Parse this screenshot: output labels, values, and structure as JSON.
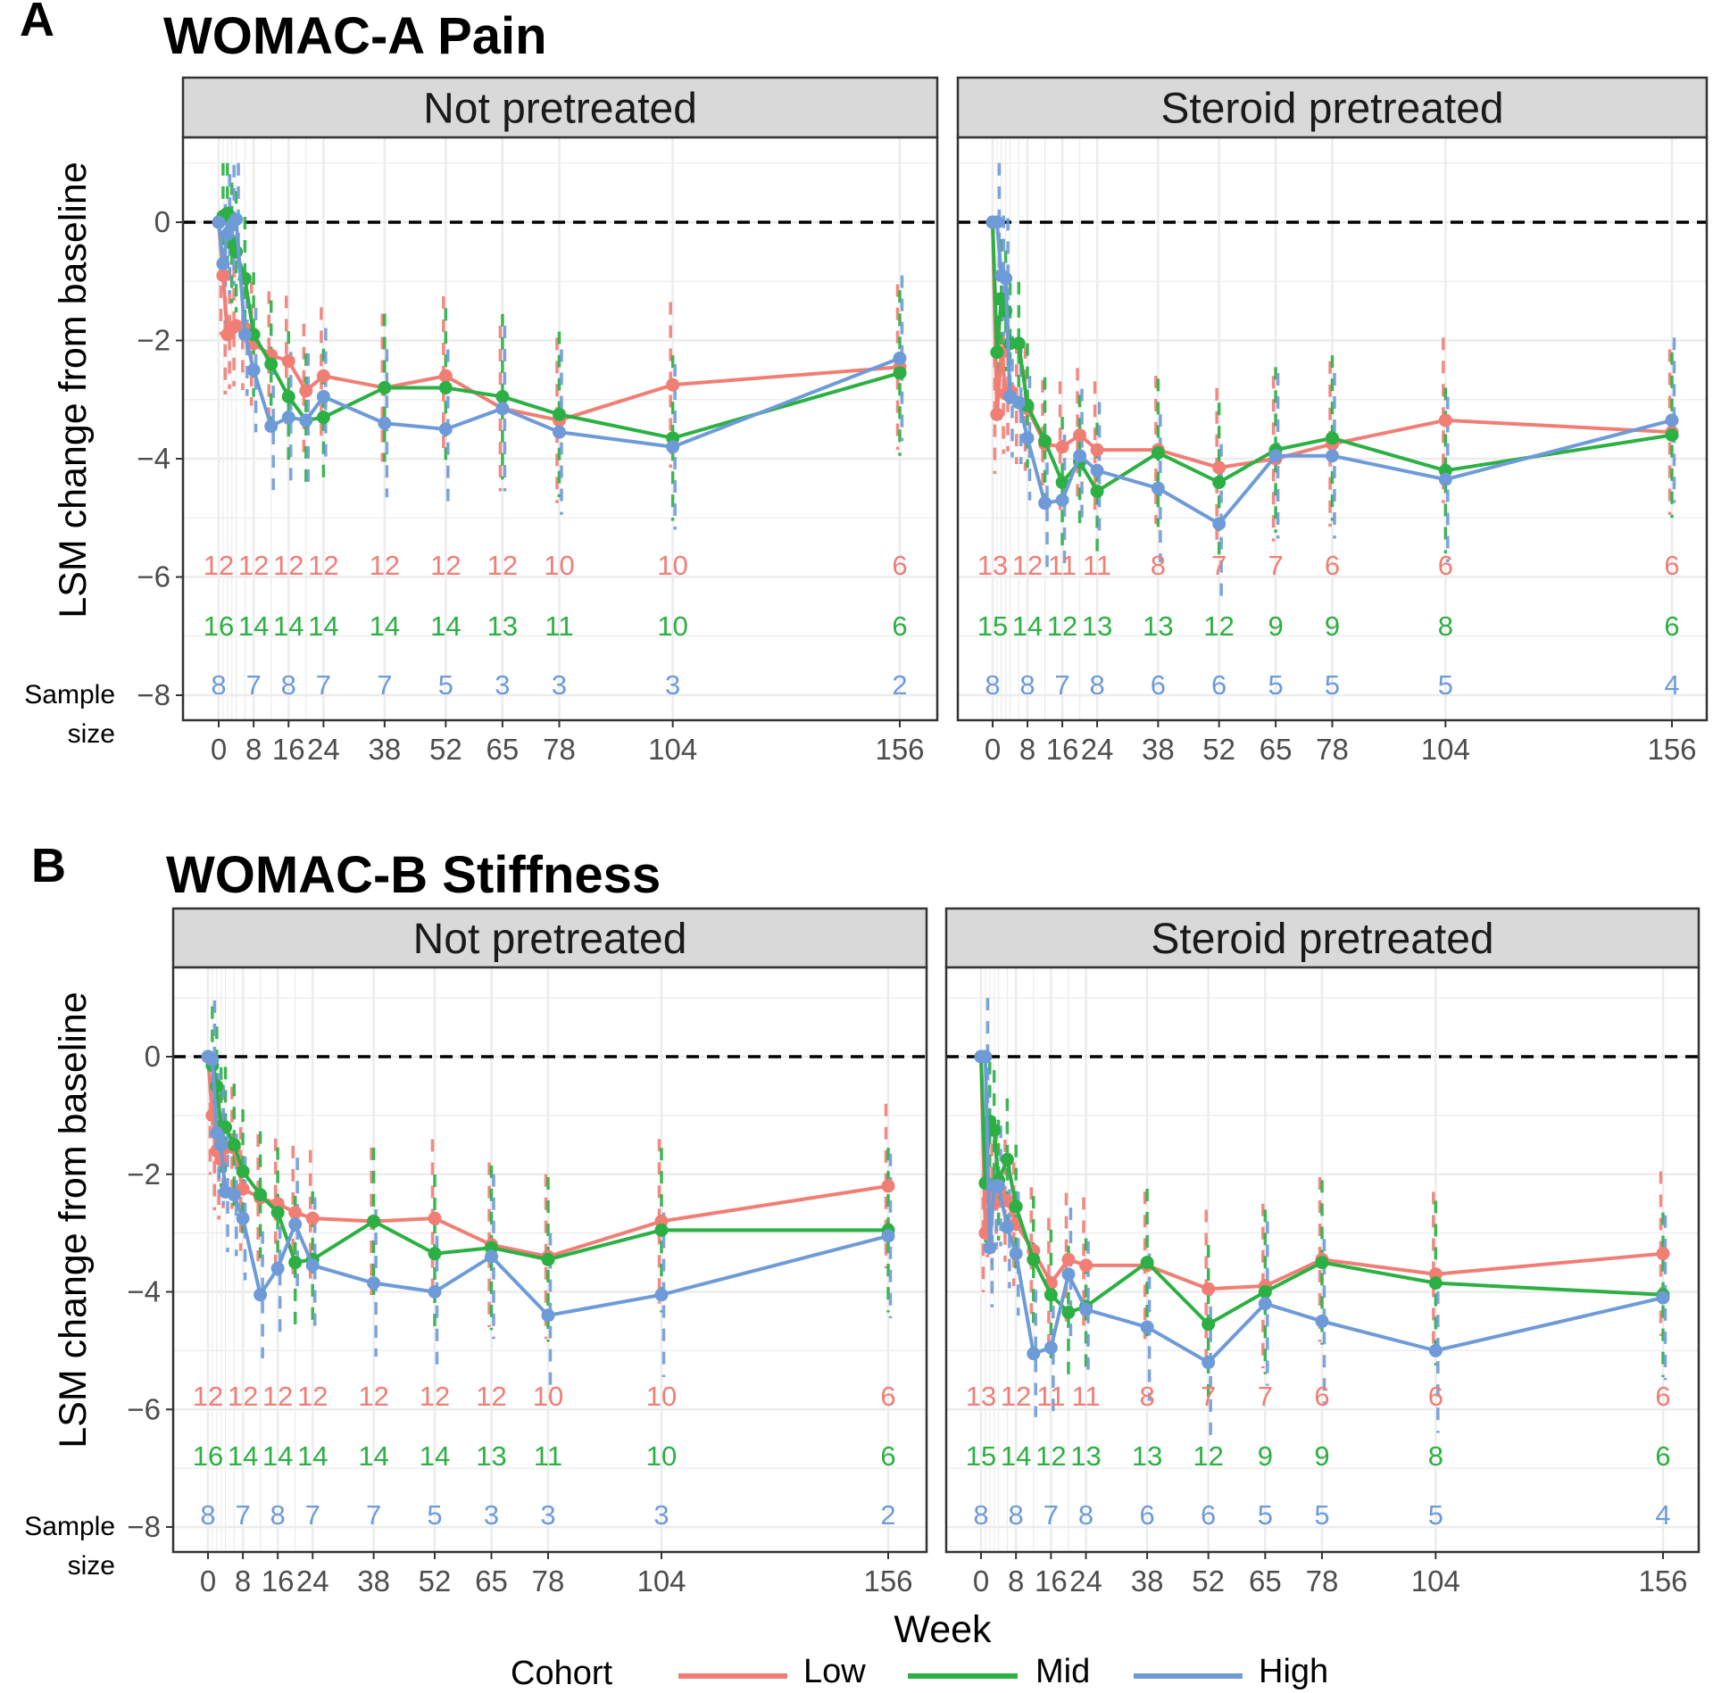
{
  "legend": {
    "title": "Cohort",
    "items": [
      {
        "label": "Low",
        "color": "#F07E75"
      },
      {
        "label": "Mid",
        "color": "#2CB043"
      },
      {
        "label": "High",
        "color": "#6E9BD8"
      }
    ]
  },
  "x_axis_label": "Week",
  "y_axis_label": "LSM change from baseline",
  "sample_size_label": [
    "Sample",
    "size"
  ],
  "chart_data": [
    {
      "type": "line",
      "panel_letter": "A",
      "title": "WOMAC-A Pain",
      "xlabel": "Week",
      "ylabel": "LSM change from baseline",
      "ylim": [
        -8,
        1
      ],
      "y_ticks": [
        0,
        -2,
        -4,
        -6,
        -8
      ],
      "x_ticks": [
        0,
        8,
        16,
        24,
        38,
        52,
        65,
        78,
        104,
        156
      ],
      "reference_line": 0,
      "facets": [
        {
          "label": "Not pretreated",
          "series": [
            {
              "name": "Low",
              "x": [
                0,
                1,
                2,
                3,
                4,
                6,
                8,
                12,
                16,
                20,
                24,
                38,
                52,
                65,
                78,
                104,
                156
              ],
              "y": [
                0,
                -0.9,
                -1.9,
                -1.8,
                -1.75,
                -1.8,
                -2.05,
                -2.25,
                -2.35,
                -2.85,
                -2.6,
                -2.8,
                -2.6,
                -3.15,
                -3.35,
                -2.75,
                -2.45
              ]
            },
            {
              "name": "Mid",
              "x": [
                0,
                1,
                2,
                3,
                4,
                6,
                8,
                12,
                16,
                20,
                24,
                38,
                52,
                65,
                78,
                104,
                156
              ],
              "y": [
                0,
                0.1,
                0.15,
                -0.35,
                -0.5,
                -0.95,
                -1.9,
                -2.4,
                -2.95,
                -3.35,
                -3.3,
                -2.8,
                -2.8,
                -2.95,
                -3.25,
                -3.65,
                -2.55
              ]
            },
            {
              "name": "High",
              "x": [
                0,
                1,
                2,
                3,
                4,
                6,
                8,
                12,
                16,
                20,
                24,
                38,
                52,
                65,
                78,
                104,
                156
              ],
              "y": [
                0,
                -0.7,
                -0.2,
                -0.05,
                0.05,
                -1.9,
                -2.5,
                -3.45,
                -3.3,
                -3.35,
                -2.95,
                -3.4,
                -3.5,
                -3.15,
                -3.55,
                -3.8,
                -2.3
              ]
            }
          ],
          "sample_size": {
            "weeks": [
              0,
              8,
              16,
              24,
              38,
              52,
              65,
              78,
              104,
              156
            ],
            "Low": [
              12,
              12,
              12,
              12,
              12,
              12,
              12,
              10,
              10,
              6
            ],
            "Mid": [
              16,
              14,
              14,
              14,
              14,
              14,
              13,
              11,
              10,
              6
            ],
            "High": [
              8,
              7,
              8,
              7,
              7,
              5,
              3,
              3,
              3,
              2
            ]
          }
        },
        {
          "label": "Steroid pretreated",
          "series": [
            {
              "name": "Low",
              "x": [
                0,
                1,
                2,
                3,
                4,
                6,
                8,
                12,
                16,
                20,
                24,
                38,
                52,
                65,
                78,
                104,
                156
              ],
              "y": [
                0,
                -3.25,
                -2.2,
                -2.9,
                -2.85,
                -3.05,
                -3.15,
                -3.75,
                -3.8,
                -3.6,
                -3.85,
                -3.85,
                -4.15,
                -4.0,
                -3.75,
                -3.35,
                -3.55
              ]
            },
            {
              "name": "Mid",
              "x": [
                0,
                1,
                2,
                3,
                4,
                6,
                8,
                12,
                16,
                20,
                24,
                38,
                52,
                65,
                78,
                104,
                156
              ],
              "y": [
                0,
                -2.2,
                -1.3,
                -1.5,
                -2.05,
                -2.05,
                -3.1,
                -3.7,
                -4.4,
                -4.05,
                -4.55,
                -3.9,
                -4.4,
                -3.85,
                -3.65,
                -4.2,
                -3.6
              ]
            },
            {
              "name": "High",
              "x": [
                0,
                1,
                2,
                3,
                4,
                6,
                8,
                12,
                16,
                20,
                24,
                38,
                52,
                65,
                78,
                104,
                156
              ],
              "y": [
                0,
                0,
                -0.9,
                -0.95,
                -2.95,
                -3.05,
                -3.65,
                -4.75,
                -4.7,
                -3.95,
                -4.2,
                -4.5,
                -5.1,
                -3.95,
                -3.95,
                -4.35,
                -3.35
              ]
            }
          ],
          "sample_size": {
            "weeks": [
              0,
              8,
              16,
              24,
              38,
              52,
              65,
              78,
              104,
              156
            ],
            "Low": [
              13,
              12,
              11,
              11,
              8,
              7,
              7,
              6,
              6,
              6
            ],
            "Mid": [
              15,
              14,
              12,
              13,
              13,
              12,
              9,
              9,
              8,
              6
            ],
            "High": [
              8,
              8,
              7,
              8,
              6,
              6,
              5,
              5,
              5,
              4
            ]
          }
        }
      ]
    },
    {
      "type": "line",
      "panel_letter": "B",
      "title": "WOMAC-B Stiffness",
      "xlabel": "Week",
      "ylabel": "LSM change from baseline",
      "ylim": [
        -8,
        1
      ],
      "y_ticks": [
        0,
        -2,
        -4,
        -6,
        -8
      ],
      "x_ticks": [
        0,
        8,
        16,
        24,
        38,
        52,
        65,
        78,
        104,
        156
      ],
      "reference_line": 0,
      "facets": [
        {
          "label": "Not pretreated",
          "series": [
            {
              "name": "Low",
              "x": [
                0,
                1,
                2,
                3,
                4,
                6,
                8,
                12,
                16,
                20,
                24,
                38,
                52,
                65,
                78,
                104,
                156
              ],
              "y": [
                0,
                -1.0,
                -1.6,
                -1.75,
                -1.55,
                -1.55,
                -2.25,
                -2.4,
                -2.5,
                -2.65,
                -2.75,
                -2.8,
                -2.75,
                -3.2,
                -3.4,
                -2.8,
                -2.2
              ]
            },
            {
              "name": "Mid",
              "x": [
                0,
                1,
                2,
                3,
                4,
                6,
                8,
                12,
                16,
                20,
                24,
                38,
                52,
                65,
                78,
                104,
                156
              ],
              "y": [
                0,
                -0.15,
                -0.5,
                -1.2,
                -1.2,
                -1.5,
                -1.95,
                -2.35,
                -2.65,
                -3.5,
                -3.45,
                -2.8,
                -3.35,
                -3.25,
                -3.45,
                -2.95,
                -2.95
              ]
            },
            {
              "name": "High",
              "x": [
                0,
                1,
                2,
                3,
                4,
                6,
                8,
                12,
                16,
                20,
                24,
                38,
                52,
                65,
                78,
                104,
                156
              ],
              "y": [
                0,
                -0.05,
                -1.3,
                -1.5,
                -2.3,
                -2.35,
                -2.75,
                -4.05,
                -3.6,
                -2.85,
                -3.55,
                -3.85,
                -4.0,
                -3.4,
                -4.4,
                -4.05,
                -3.05
              ]
            }
          ],
          "sample_size": {
            "weeks": [
              0,
              8,
              16,
              24,
              38,
              52,
              65,
              78,
              104,
              156
            ],
            "Low": [
              12,
              12,
              12,
              12,
              12,
              12,
              12,
              10,
              10,
              6
            ],
            "Mid": [
              16,
              14,
              14,
              14,
              14,
              14,
              13,
              11,
              10,
              6
            ],
            "High": [
              8,
              7,
              8,
              7,
              7,
              5,
              3,
              3,
              3,
              2
            ]
          }
        },
        {
          "label": "Steroid pretreated",
          "series": [
            {
              "name": "Low",
              "x": [
                0,
                1,
                2,
                3,
                4,
                6,
                8,
                12,
                16,
                20,
                24,
                38,
                52,
                65,
                78,
                104,
                156
              ],
              "y": [
                0,
                -3.0,
                -2.4,
                -2.5,
                -2.25,
                -2.45,
                -2.85,
                -3.3,
                -3.85,
                -3.45,
                -3.55,
                -3.55,
                -3.95,
                -3.9,
                -3.45,
                -3.7,
                -3.35
              ]
            },
            {
              "name": "Mid",
              "x": [
                0,
                1,
                2,
                3,
                4,
                6,
                8,
                12,
                16,
                20,
                24,
                38,
                52,
                65,
                78,
                104,
                156
              ],
              "y": [
                0,
                -2.15,
                -1.1,
                -1.25,
                -2.1,
                -1.75,
                -2.55,
                -3.45,
                -4.05,
                -4.35,
                -4.25,
                -3.5,
                -4.55,
                -4.0,
                -3.5,
                -3.85,
                -4.05
              ]
            },
            {
              "name": "High",
              "x": [
                0,
                1,
                2,
                3,
                4,
                6,
                8,
                12,
                16,
                20,
                24,
                38,
                52,
                65,
                78,
                104,
                156
              ],
              "y": [
                0,
                0,
                -3.25,
                -2.2,
                -2.2,
                -2.9,
                -3.35,
                -5.05,
                -4.95,
                -3.7,
                -4.3,
                -4.6,
                -5.2,
                -4.2,
                -4.5,
                -5.0,
                -4.1
              ]
            }
          ],
          "sample_size": {
            "weeks": [
              0,
              8,
              16,
              24,
              38,
              52,
              65,
              78,
              104,
              156
            ],
            "Low": [
              13,
              12,
              11,
              11,
              8,
              7,
              7,
              6,
              6,
              6
            ],
            "Mid": [
              15,
              14,
              12,
              13,
              13,
              12,
              9,
              9,
              8,
              6
            ],
            "High": [
              8,
              8,
              7,
              8,
              6,
              6,
              5,
              5,
              5,
              4
            ]
          }
        }
      ]
    }
  ]
}
